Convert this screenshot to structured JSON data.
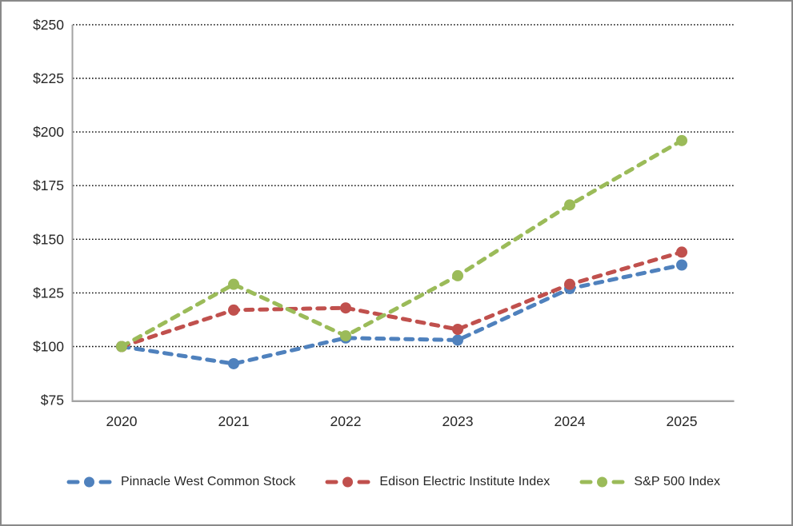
{
  "chart_data": {
    "type": "line",
    "title": "",
    "xlabel": "",
    "ylabel": "",
    "x_labels": [
      "2020",
      "2021",
      "2022",
      "2023",
      "2024",
      "2025"
    ],
    "y_ticks": [
      {
        "value": 75,
        "label": "$75"
      },
      {
        "value": 100,
        "label": "$100"
      },
      {
        "value": 125,
        "label": "$125"
      },
      {
        "value": 150,
        "label": "$150"
      },
      {
        "value": 175,
        "label": "$175"
      },
      {
        "value": 200,
        "label": "$200"
      },
      {
        "value": 225,
        "label": "$225"
      },
      {
        "value": 250,
        "label": "$250"
      }
    ],
    "ylim": [
      75,
      250
    ],
    "grid": "dotted-horizontal",
    "line_style": "dashed-with-round-markers",
    "legend_position": "bottom",
    "series": [
      {
        "name": "Pinnacle West Common Stock",
        "color": "#4F81BD",
        "values": [
          100,
          92,
          104,
          103,
          127,
          138
        ]
      },
      {
        "name": "Edison Electric Institute Index",
        "color": "#C0504D",
        "values": [
          100,
          117,
          118,
          108,
          129,
          144
        ]
      },
      {
        "name": "S&P 500 Index",
        "color": "#9BBB59",
        "values": [
          100,
          129,
          105,
          133,
          166,
          196
        ]
      }
    ],
    "colors": {
      "gridline": "#000000",
      "axis": "#A3A3A3",
      "label_text": "#262626",
      "background": "#FFFFFF",
      "border": "#898989"
    }
  }
}
